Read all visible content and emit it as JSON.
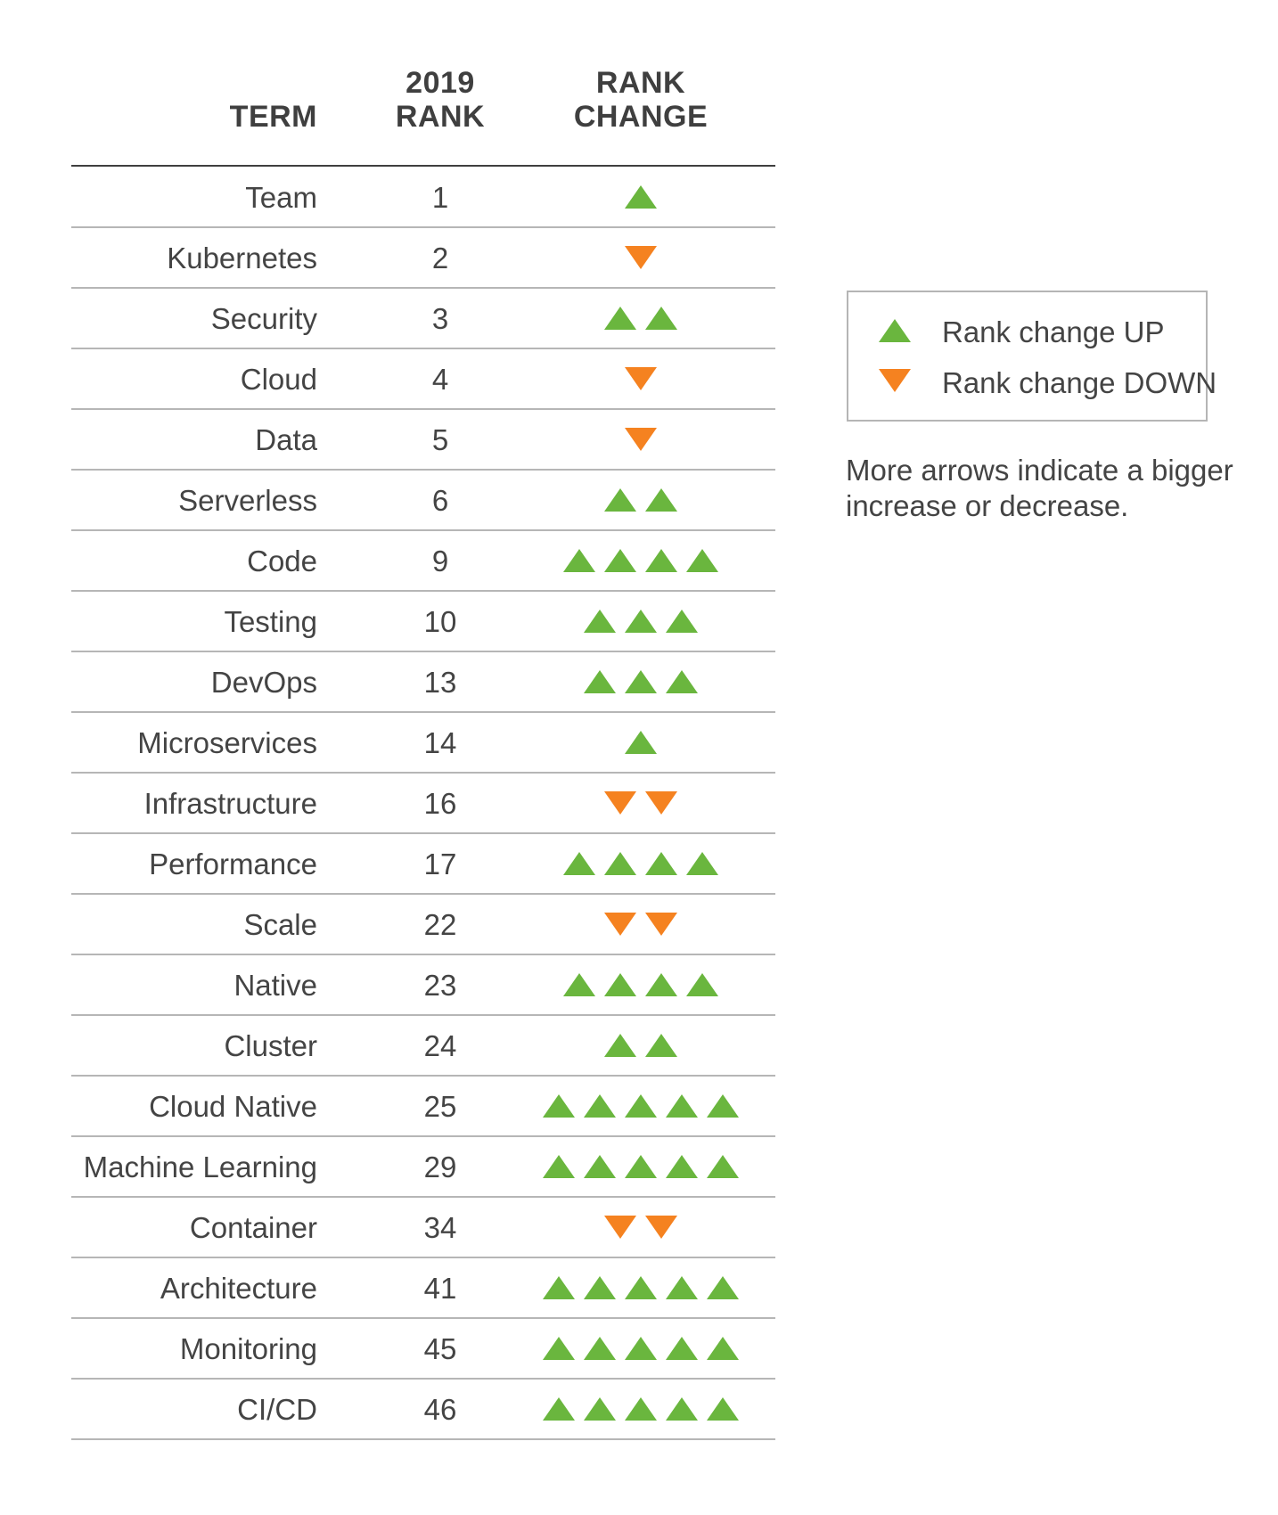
{
  "colors": {
    "up": "#6ab63e",
    "down": "#f58220",
    "rule": "#9e9e9e",
    "header_rule": "#3f3f3f",
    "text": "#444444",
    "legend_border": "#b5b5b5"
  },
  "chart_data": {
    "type": "table",
    "columns": {
      "term": "TERM",
      "rank_line1": "2019",
      "rank_line2": "RANK",
      "change_line1": "RANK",
      "change_line2": "CHANGE"
    },
    "rows": [
      {
        "term": "Team",
        "rank": "1",
        "direction": "up",
        "count": 1
      },
      {
        "term": "Kubernetes",
        "rank": "2",
        "direction": "down",
        "count": 1
      },
      {
        "term": "Security",
        "rank": "3",
        "direction": "up",
        "count": 2
      },
      {
        "term": "Cloud",
        "rank": "4",
        "direction": "down",
        "count": 1
      },
      {
        "term": "Data",
        "rank": "5",
        "direction": "down",
        "count": 1
      },
      {
        "term": "Serverless",
        "rank": "6",
        "direction": "up",
        "count": 2
      },
      {
        "term": "Code",
        "rank": "9",
        "direction": "up",
        "count": 4
      },
      {
        "term": "Testing",
        "rank": "10",
        "direction": "up",
        "count": 3
      },
      {
        "term": "DevOps",
        "rank": "13",
        "direction": "up",
        "count": 3
      },
      {
        "term": "Microservices",
        "rank": "14",
        "direction": "up",
        "count": 1
      },
      {
        "term": "Infrastructure",
        "rank": "16",
        "direction": "down",
        "count": 2
      },
      {
        "term": "Performance",
        "rank": "17",
        "direction": "up",
        "count": 4
      },
      {
        "term": "Scale",
        "rank": "22",
        "direction": "down",
        "count": 2
      },
      {
        "term": "Native",
        "rank": "23",
        "direction": "up",
        "count": 4
      },
      {
        "term": "Cluster",
        "rank": "24",
        "direction": "up",
        "count": 2
      },
      {
        "term": "Cloud Native",
        "rank": "25",
        "direction": "up",
        "count": 5
      },
      {
        "term": "Machine Learning",
        "rank": "29",
        "direction": "up",
        "count": 5
      },
      {
        "term": "Container",
        "rank": "34",
        "direction": "down",
        "count": 2
      },
      {
        "term": "Architecture",
        "rank": "41",
        "direction": "up",
        "count": 5
      },
      {
        "term": "Monitoring",
        "rank": "45",
        "direction": "up",
        "count": 5
      },
      {
        "term": "CI/CD",
        "rank": "46",
        "direction": "up",
        "count": 5
      }
    ],
    "legend": {
      "up_label": "Rank change UP",
      "down_label": "Rank change DOWN"
    },
    "note_line1": "More arrows indicate a bigger",
    "note_line2": "increase or decrease."
  }
}
